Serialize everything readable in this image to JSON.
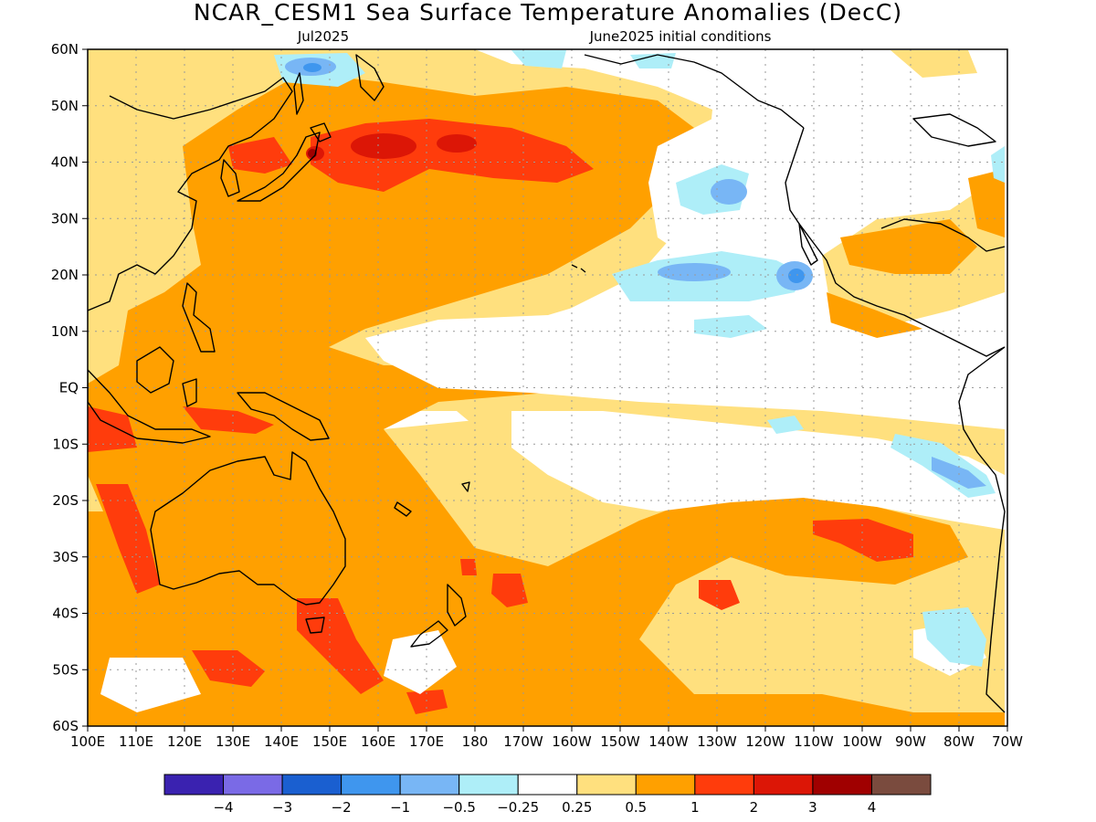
{
  "title": "NCAR_CESM1 Sea Surface Temperature Anomalies (DecC)",
  "subtitle_left": "Jul2025",
  "subtitle_right": "June2025 initial conditions",
  "lat_labels": [
    "60N",
    "50N",
    "40N",
    "30N",
    "20N",
    "10N",
    "EQ",
    "10S",
    "20S",
    "30S",
    "40S",
    "50S",
    "60S"
  ],
  "lon_labels": [
    "100E",
    "110E",
    "120E",
    "130E",
    "140E",
    "150E",
    "160E",
    "170E",
    "180",
    "170W",
    "160W",
    "150W",
    "140W",
    "130W",
    "120W",
    "110W",
    "100W",
    "90W",
    "80W",
    "70W"
  ],
  "colorbar": {
    "colors": [
      "#3a22b0",
      "#7a6ae6",
      "#1a5fd0",
      "#3f96ee",
      "#78b6f5",
      "#aeeef8",
      "#ffffff",
      "#ffe07e",
      "#ffa000",
      "#ff3c0c",
      "#dc1606",
      "#a00000",
      "#7a4b3e"
    ],
    "labels": [
      "−4",
      "−3",
      "−2",
      "−1",
      "−0.5",
      "−0.25",
      "0.25",
      "0.5",
      "1",
      "2",
      "3",
      "4"
    ]
  },
  "colors": {
    "ocean_neutral": "#ffffff",
    "land_outline": "#000000",
    "grid": "#9a9a9a"
  }
}
